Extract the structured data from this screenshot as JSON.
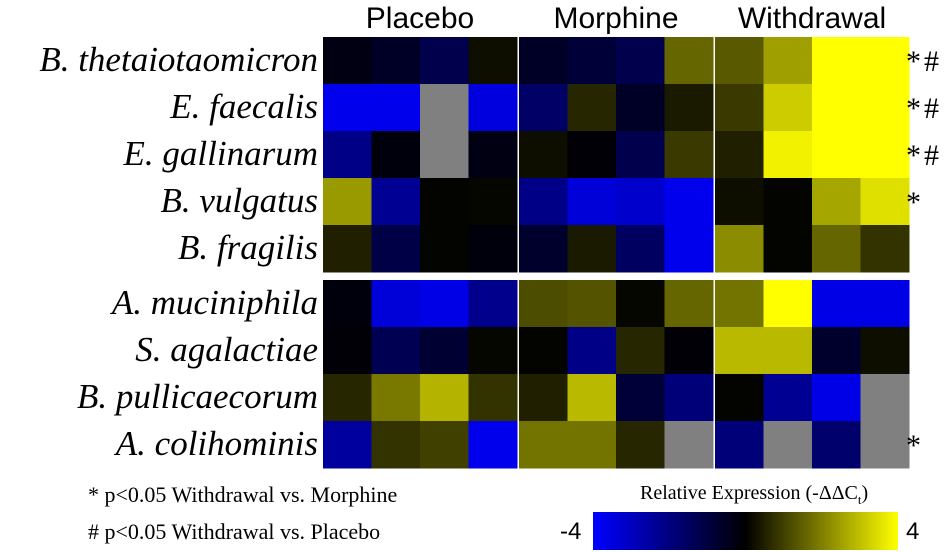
{
  "chart_data": {
    "type": "heatmap",
    "conditions": [
      "Placebo",
      "Morphine",
      "Withdrawal"
    ],
    "replicates_per_condition": 4,
    "rows": [
      {
        "label": "B. thetaiotaomicron",
        "sig": "*#",
        "values": [
          -0.3,
          -0.6,
          -1.2,
          0.2,
          -0.6,
          -0.9,
          -1.2,
          1.6,
          1.4,
          2.5,
          4,
          4
        ]
      },
      {
        "label": "E. faecalis",
        "sig": "*#",
        "values": [
          -3.7,
          -3.7,
          null,
          -3.5,
          -1.6,
          0.6,
          -0.6,
          0.4,
          0.9,
          3.2,
          4,
          4
        ]
      },
      {
        "label": "E. gallinarum",
        "sig": "*#",
        "values": [
          -2.1,
          -0.2,
          null,
          -0.3,
          0.2,
          -0.1,
          -1.2,
          0.9,
          0.5,
          3.8,
          4,
          4
        ]
      },
      {
        "label": "B. vulgatus",
        "sig": "*",
        "values": [
          2.4,
          -2.3,
          0.05,
          0.1,
          -2.1,
          -3.4,
          -3.2,
          -3.7,
          0.2,
          0.05,
          2.6,
          3.5
        ]
      },
      {
        "label": "B. fragilis",
        "sig": "",
        "values": [
          0.5,
          -1.1,
          0.05,
          -0.2,
          -0.7,
          0.4,
          -1.5,
          -3.7,
          2.2,
          0.05,
          1.6,
          0.8
        ]
      },
      {
        "label": "A. muciniphila",
        "sig": "",
        "values": [
          -0.2,
          -3.4,
          -3.6,
          -2.2,
          1.2,
          1.3,
          0.1,
          1.6,
          1.8,
          4,
          -3.6,
          -3.6
        ]
      },
      {
        "label": "S. agalactiae",
        "sig": "",
        "values": [
          -0.1,
          -1.3,
          -0.8,
          0.1,
          0.05,
          -2.1,
          0.6,
          -0.1,
          2.9,
          2.9,
          -0.7,
          0.2
        ]
      },
      {
        "label": "B. pullicaecorum",
        "sig": "",
        "values": [
          0.6,
          1.9,
          2.8,
          0.8,
          0.5,
          2.9,
          -0.9,
          -1.9,
          0.05,
          -2.3,
          -3.6,
          null
        ]
      },
      {
        "label": "A. colihominis",
        "sig": "*",
        "values": [
          -2.5,
          0.8,
          1,
          -3.7,
          1.8,
          1.8,
          0.6,
          null,
          -1.9,
          null,
          -1.7,
          null
        ]
      }
    ],
    "group_break_after_row": 4,
    "colorbar": {
      "title": "Relative Expression (-ΔΔC",
      "title_sub": "t",
      "title_close": ")",
      "min": -4,
      "max": 4,
      "min_label": "-4",
      "max_label": "4",
      "colors": [
        "#0000ff",
        "#000000",
        "#ffff00"
      ],
      "missing_color": "#808080"
    }
  },
  "footnotes": {
    "star": "* p<0.05 Withdrawal vs. Morphine",
    "hash": "# p<0.05 Withdrawal vs. Placebo"
  }
}
